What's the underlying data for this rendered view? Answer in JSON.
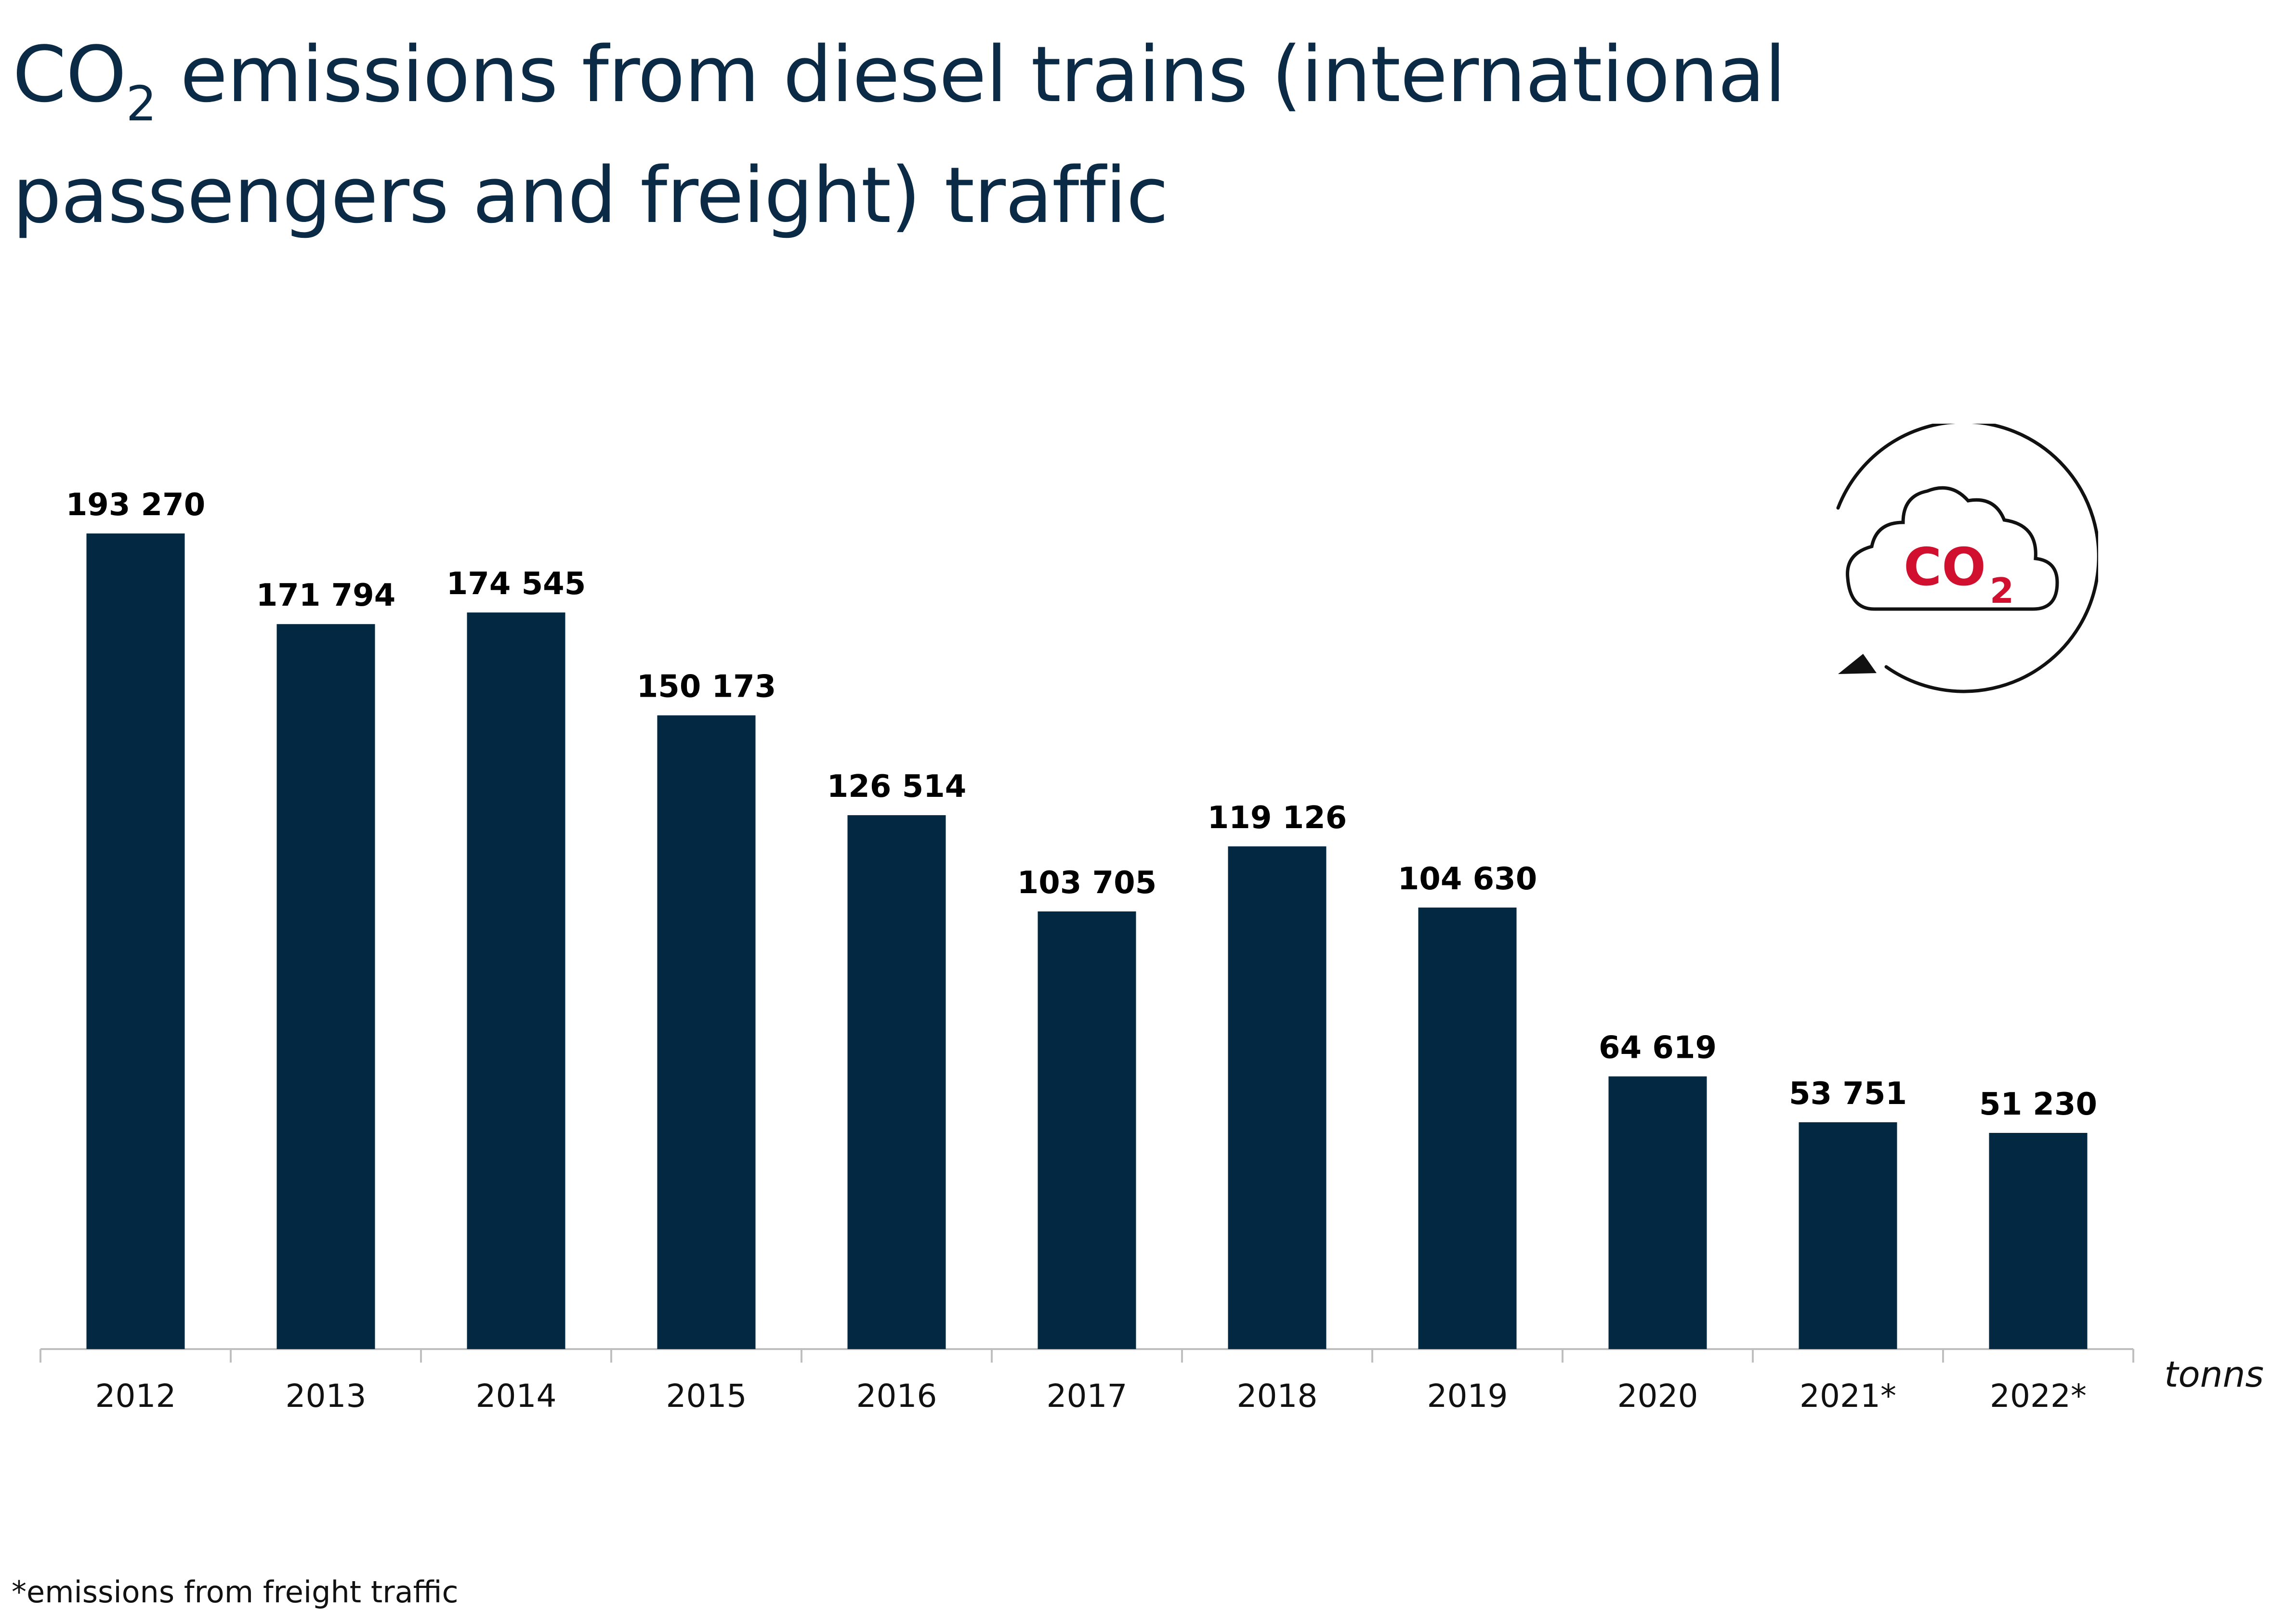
{
  "title": {
    "prefix": "CO",
    "subscript": "2",
    "line1_rest": " emissions from diesel trains (international",
    "line2": "passengers and freight) traffic"
  },
  "footnote": "*emissions from freight traffic",
  "icon": {
    "name": "co2-cloud-cycle-icon",
    "text_main": "CO",
    "text_sub": "2",
    "accent_color": "#d0102e",
    "outline_color": "#111111"
  },
  "colors": {
    "bar": "#022842",
    "title": "#0b2a45",
    "axis": "#bfbfbf",
    "label": "#000000"
  },
  "chart_data": {
    "type": "bar",
    "title": "CO2 emissions from diesel trains (international passengers and freight) traffic",
    "categories": [
      "2012",
      "2013",
      "2014",
      "2015",
      "2016",
      "2017",
      "2018",
      "2019",
      "2020",
      "2021*",
      "2022*"
    ],
    "values": [
      193270,
      171794,
      174545,
      150173,
      126514,
      103705,
      119126,
      104630,
      64619,
      53751,
      51230
    ],
    "data_labels": [
      "193 270",
      "171 794",
      "174 545",
      "150 173",
      "126 514",
      "103 705",
      "119 126",
      "104 630",
      "64 619",
      "53 751",
      "51 230"
    ],
    "unit_label": "tonns",
    "xlabel": "",
    "ylabel": "",
    "ylim": [
      0,
      193270
    ],
    "grid": false,
    "legend": "none"
  }
}
